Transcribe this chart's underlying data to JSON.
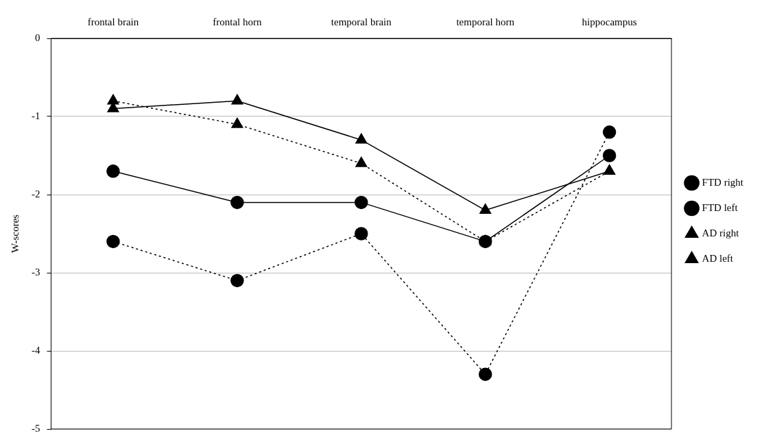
{
  "chart_data": {
    "type": "line",
    "ylabel": "W-scores",
    "categories": [
      "frontal brain",
      "frontal horn",
      "temporal brain",
      "temporal horn",
      "hippocampus"
    ],
    "ylim": [
      -5,
      0
    ],
    "yticks": [
      -5,
      -4,
      -3,
      -2,
      -1,
      0
    ],
    "grid": "y",
    "legend": "right",
    "series": [
      {
        "name": "FTD right",
        "color": "#000000",
        "marker": "circle",
        "line_style": "solid",
        "values": [
          -1.7,
          -2.1,
          -2.1,
          -2.6,
          -1.5
        ]
      },
      {
        "name": "FTD left",
        "color": "#000000",
        "marker": "circle",
        "line_style": "dotted",
        "values": [
          -2.6,
          -3.1,
          -2.5,
          -4.3,
          -1.2
        ]
      },
      {
        "name": "AD right",
        "color": "#000000",
        "marker": "triangle",
        "line_style": "solid",
        "values": [
          -0.9,
          -0.8,
          -1.3,
          -2.2,
          -1.7
        ]
      },
      {
        "name": "AD left",
        "color": "#000000",
        "marker": "triangle",
        "line_style": "dotted",
        "values": [
          -0.8,
          -1.1,
          -1.6,
          -2.6,
          -1.7
        ]
      }
    ]
  }
}
